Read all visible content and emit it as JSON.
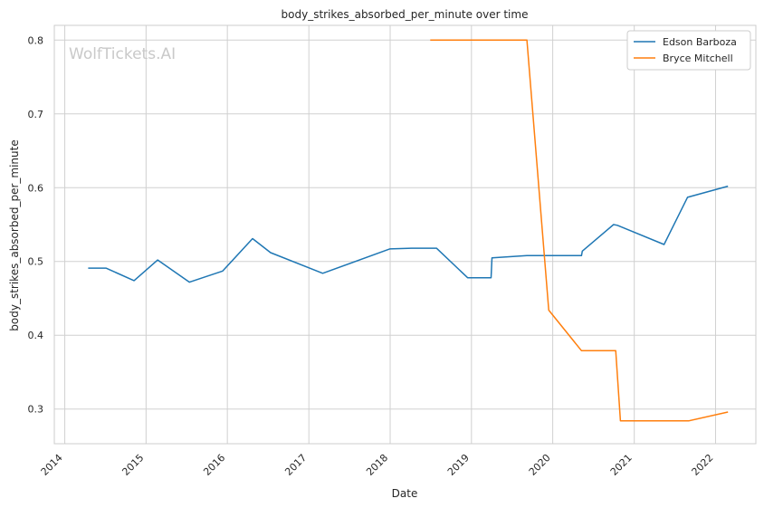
{
  "chart_data": {
    "type": "line",
    "title": "body_strikes_absorbed_per_minute over time",
    "xlabel": "Date",
    "ylabel": "body_strikes_absorbed_per_minute",
    "watermark": "WolfTickets.AI",
    "x_ticks": [
      "2014",
      "2015",
      "2016",
      "2017",
      "2018",
      "2019",
      "2020",
      "2021",
      "2022"
    ],
    "y_ticks": [
      "0.3",
      "0.4",
      "0.5",
      "0.6",
      "0.7",
      "0.8"
    ],
    "xlim": [
      "2013-11-15",
      "2022-07-01"
    ],
    "ylim": [
      0.253,
      0.82
    ],
    "grid": true,
    "legend_position": "top-right",
    "series": [
      {
        "name": "Edson Barboza",
        "color": "#1f77b4",
        "points": [
          [
            "2014-04-16",
            0.491
          ],
          [
            "2014-07-05",
            0.491
          ],
          [
            "2014-11-08",
            0.474
          ],
          [
            "2015-02-22",
            0.502
          ],
          [
            "2015-07-15",
            0.472
          ],
          [
            "2015-12-11",
            0.487
          ],
          [
            "2016-04-23",
            0.531
          ],
          [
            "2016-07-13",
            0.512
          ],
          [
            "2017-03-04",
            0.484
          ],
          [
            "2017-12-30",
            0.517
          ],
          [
            "2018-04-07",
            0.518
          ],
          [
            "2018-07-28",
            0.518
          ],
          [
            "2018-12-15",
            0.478
          ],
          [
            "2019-03-30",
            0.478
          ],
          [
            "2019-04-03",
            0.505
          ],
          [
            "2019-09-07",
            0.508
          ],
          [
            "2020-05-09",
            0.508
          ],
          [
            "2020-05-13",
            0.514
          ],
          [
            "2020-09-30",
            0.55
          ],
          [
            "2020-10-17",
            0.549
          ],
          [
            "2021-05-15",
            0.523
          ],
          [
            "2021-08-28",
            0.587
          ],
          [
            "2022-02-26",
            0.602
          ]
        ]
      },
      {
        "name": "Bryce Mitchell",
        "color": "#ff7f0e",
        "points": [
          [
            "2018-06-30",
            0.8
          ],
          [
            "2019-09-07",
            0.8
          ],
          [
            "2019-12-14",
            0.434
          ],
          [
            "2020-05-09",
            0.379
          ],
          [
            "2020-10-10",
            0.379
          ],
          [
            "2020-10-31",
            0.284
          ],
          [
            "2021-09-04",
            0.284
          ],
          [
            "2022-02-26",
            0.296
          ]
        ]
      }
    ]
  }
}
